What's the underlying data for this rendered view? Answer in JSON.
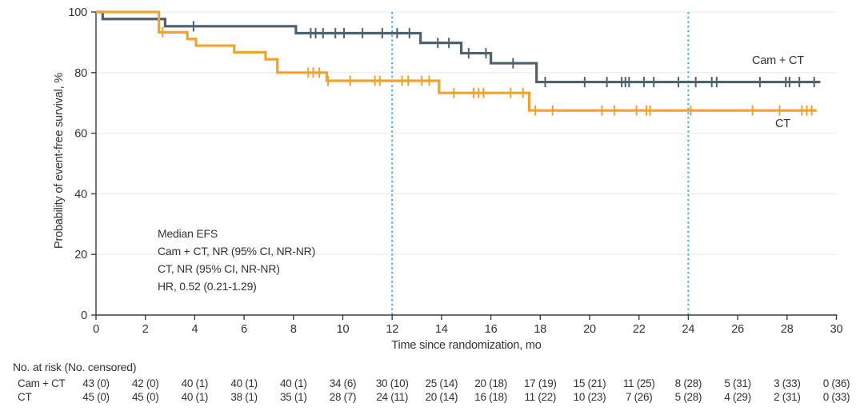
{
  "figure": {
    "background": "#ffffff"
  },
  "annotation": {
    "lines": [
      "Median EFS",
      "Cam + CT, NR (95% CI, NR-NR)",
      "CT, NR (95% CI, NR-NR)",
      "HR, 0.52 (0.21-1.29)"
    ]
  },
  "risk_table": {
    "header": "No. at risk (No. censored)",
    "times": [
      0,
      2,
      4,
      6,
      8,
      10,
      12,
      14,
      16,
      18,
      20,
      22,
      24,
      26,
      28,
      30
    ],
    "rows": [
      {
        "label": "Cam + CT",
        "values": [
          "43 (0)",
          "42 (0)",
          "40 (1)",
          "40 (1)",
          "40 (1)",
          "34 (6)",
          "30 (10)",
          "25 (14)",
          "20 (18)",
          "17 (19)",
          "15 (21)",
          "11 (25)",
          "8 (28)",
          "5 (31)",
          "3 (33)",
          "0 (36)"
        ]
      },
      {
        "label": "CT",
        "values": [
          "45 (0)",
          "45 (0)",
          "40 (1)",
          "38 (1)",
          "35 (1)",
          "28 (7)",
          "24 (11)",
          "20 (14)",
          "16 (18)",
          "11 (22)",
          "10 (23)",
          "7 (26)",
          "5 (28)",
          "4 (29)",
          "2 (31)",
          "0 (33)"
        ]
      }
    ]
  },
  "chart_data": {
    "type": "line",
    "subtype": "kaplan-meier-step",
    "title": "",
    "xlabel": "Time since randomization, mo",
    "ylabel": "Probability of event-free survival, %",
    "xlim": [
      0,
      30
    ],
    "ylim": [
      0,
      100
    ],
    "x_ticks": [
      0,
      2,
      4,
      6,
      8,
      10,
      12,
      14,
      16,
      18,
      20,
      22,
      24,
      26,
      28,
      30
    ],
    "y_ticks": [
      0,
      20,
      40,
      60,
      80,
      100
    ],
    "grid": "horizontal",
    "reference_lines_x": [
      12,
      24
    ],
    "colors": {
      "cam_ct": "#4D616E",
      "ct": "#F0A32D",
      "reference": "#41B0E4",
      "grid": "#EDEDED",
      "axis": "#3B3B3B",
      "tick_text": "#333333"
    },
    "series": [
      {
        "name": "Cam + CT",
        "color_key": "cam_ct",
        "steps": [
          [
            0,
            100
          ],
          [
            0.27,
            97.7
          ],
          [
            2.8,
            95.3
          ],
          [
            8.1,
            93.0
          ],
          [
            13.15,
            89.8
          ],
          [
            14.8,
            86.4
          ],
          [
            16.0,
            83.1
          ],
          [
            17.85,
            76.9
          ],
          [
            29.35,
            76.9
          ]
        ],
        "censors": [
          [
            3.95,
            95.3
          ],
          [
            8.7,
            93.0
          ],
          [
            8.9,
            93.0
          ],
          [
            9.2,
            93.0
          ],
          [
            9.7,
            93.0
          ],
          [
            10.05,
            93.0
          ],
          [
            10.8,
            93.0
          ],
          [
            11.6,
            93.0
          ],
          [
            12.2,
            93.0
          ],
          [
            12.7,
            93.0
          ],
          [
            13.85,
            89.8
          ],
          [
            14.3,
            89.8
          ],
          [
            15.1,
            86.4
          ],
          [
            15.8,
            86.4
          ],
          [
            16.9,
            83.1
          ],
          [
            18.2,
            76.9
          ],
          [
            19.8,
            76.9
          ],
          [
            20.7,
            76.9
          ],
          [
            21.3,
            76.9
          ],
          [
            21.45,
            76.9
          ],
          [
            21.6,
            76.9
          ],
          [
            22.2,
            76.9
          ],
          [
            22.6,
            76.9
          ],
          [
            23.6,
            76.9
          ],
          [
            24.3,
            76.9
          ],
          [
            24.95,
            76.9
          ],
          [
            25.15,
            76.9
          ],
          [
            26.9,
            76.9
          ],
          [
            27.95,
            76.9
          ],
          [
            28.1,
            76.9
          ],
          [
            28.5,
            76.9
          ],
          [
            29.1,
            76.9
          ]
        ]
      },
      {
        "name": "CT",
        "color_key": "ct",
        "steps": [
          [
            0,
            100
          ],
          [
            2.55,
            93.3
          ],
          [
            3.7,
            91.1
          ],
          [
            4.05,
            88.9
          ],
          [
            5.6,
            86.7
          ],
          [
            6.87,
            84.4
          ],
          [
            7.35,
            80.0
          ],
          [
            9.35,
            77.3
          ],
          [
            13.9,
            73.3
          ],
          [
            17.55,
            67.5
          ],
          [
            29.2,
            67.5
          ]
        ],
        "censors": [
          [
            2.7,
            93.3
          ],
          [
            8.6,
            80.0
          ],
          [
            8.8,
            80.0
          ],
          [
            9.05,
            80.0
          ],
          [
            9.4,
            77.3
          ],
          [
            10.3,
            77.3
          ],
          [
            11.3,
            77.3
          ],
          [
            11.5,
            77.3
          ],
          [
            12.4,
            77.3
          ],
          [
            12.65,
            77.3
          ],
          [
            13.2,
            77.3
          ],
          [
            13.5,
            77.3
          ],
          [
            14.5,
            73.3
          ],
          [
            15.3,
            73.3
          ],
          [
            15.5,
            73.3
          ],
          [
            15.7,
            73.3
          ],
          [
            16.8,
            73.3
          ],
          [
            17.3,
            73.3
          ],
          [
            17.8,
            67.5
          ],
          [
            18.5,
            67.5
          ],
          [
            20.5,
            67.5
          ],
          [
            21.0,
            67.5
          ],
          [
            21.9,
            67.5
          ],
          [
            22.3,
            67.5
          ],
          [
            22.45,
            67.5
          ],
          [
            24.1,
            67.5
          ],
          [
            26.6,
            67.5
          ],
          [
            27.7,
            67.5
          ],
          [
            28.6,
            67.5
          ],
          [
            28.8,
            67.5
          ],
          [
            29.0,
            67.5
          ]
        ]
      }
    ]
  }
}
